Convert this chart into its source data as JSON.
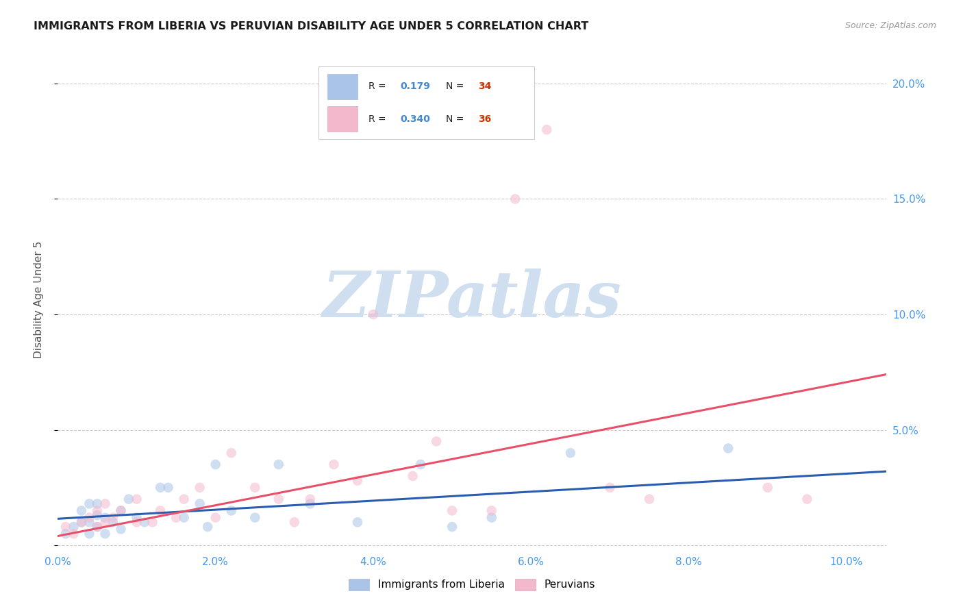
{
  "title": "IMMIGRANTS FROM LIBERIA VS PERUVIAN DISABILITY AGE UNDER 5 CORRELATION CHART",
  "source": "Source: ZipAtlas.com",
  "ylabel": "Disability Age Under 5",
  "xlim": [
    0.0,
    0.105
  ],
  "ylim": [
    -0.002,
    0.215
  ],
  "xticks": [
    0.0,
    0.02,
    0.04,
    0.06,
    0.08,
    0.1
  ],
  "yticks": [
    0.0,
    0.05,
    0.1,
    0.15,
    0.2
  ],
  "xticklabels": [
    "0.0%",
    "2.0%",
    "4.0%",
    "6.0%",
    "8.0%",
    "10.0%"
  ],
  "yticklabels_right": [
    "",
    "5.0%",
    "10.0%",
    "15.0%",
    "20.0%"
  ],
  "legend_blue_r": "0.179",
  "legend_blue_n": "34",
  "legend_pink_r": "0.340",
  "legend_pink_n": "36",
  "blue_scatter_color": "#aac4e8",
  "pink_scatter_color": "#f4b8cc",
  "blue_line_color": "#2a5db0",
  "pink_line_color": "#e8506a",
  "blue_r_color": "#4488cc",
  "blue_n_color": "#cc3300",
  "pink_r_color": "#4488cc",
  "pink_n_color": "#cc3300",
  "r_label_color": "#222222",
  "n_label_color": "#222222",
  "watermark_color": "#d0dff0",
  "grid_color": "#cccccc",
  "axis_tick_color": "#4499ee",
  "background_color": "#ffffff",
  "title_fontsize": 11.5,
  "tick_fontsize": 11,
  "source_fontsize": 9,
  "ylabel_fontsize": 11,
  "marker_size": 110,
  "marker_alpha": 0.55,
  "blue_scatter_x": [
    0.001,
    0.002,
    0.003,
    0.003,
    0.004,
    0.004,
    0.004,
    0.005,
    0.005,
    0.005,
    0.006,
    0.006,
    0.007,
    0.008,
    0.008,
    0.009,
    0.01,
    0.011,
    0.013,
    0.014,
    0.016,
    0.018,
    0.019,
    0.02,
    0.022,
    0.025,
    0.028,
    0.032,
    0.038,
    0.046,
    0.05,
    0.055,
    0.065,
    0.085
  ],
  "blue_scatter_y": [
    0.005,
    0.008,
    0.01,
    0.015,
    0.005,
    0.01,
    0.018,
    0.008,
    0.013,
    0.018,
    0.005,
    0.012,
    0.01,
    0.015,
    0.007,
    0.02,
    0.012,
    0.01,
    0.025,
    0.025,
    0.012,
    0.018,
    0.008,
    0.035,
    0.015,
    0.012,
    0.035,
    0.018,
    0.01,
    0.035,
    0.008,
    0.012,
    0.04,
    0.042
  ],
  "pink_scatter_x": [
    0.001,
    0.002,
    0.003,
    0.004,
    0.005,
    0.005,
    0.006,
    0.006,
    0.007,
    0.008,
    0.01,
    0.01,
    0.012,
    0.013,
    0.015,
    0.016,
    0.018,
    0.02,
    0.022,
    0.025,
    0.028,
    0.03,
    0.032,
    0.035,
    0.038,
    0.04,
    0.045,
    0.048,
    0.05,
    0.055,
    0.058,
    0.062,
    0.07,
    0.075,
    0.09,
    0.095
  ],
  "pink_scatter_y": [
    0.008,
    0.005,
    0.01,
    0.012,
    0.008,
    0.015,
    0.01,
    0.018,
    0.012,
    0.015,
    0.01,
    0.02,
    0.01,
    0.015,
    0.012,
    0.02,
    0.025,
    0.012,
    0.04,
    0.025,
    0.02,
    0.01,
    0.02,
    0.035,
    0.028,
    0.1,
    0.03,
    0.045,
    0.015,
    0.015,
    0.15,
    0.18,
    0.025,
    0.02,
    0.025,
    0.02
  ],
  "blue_trend_x0": 0.0,
  "blue_trend_y0": 0.0115,
  "blue_trend_x1": 0.105,
  "blue_trend_y1": 0.032,
  "pink_trend_x0": 0.0,
  "pink_trend_y0": 0.004,
  "pink_trend_x1": 0.105,
  "pink_trend_y1": 0.074
}
